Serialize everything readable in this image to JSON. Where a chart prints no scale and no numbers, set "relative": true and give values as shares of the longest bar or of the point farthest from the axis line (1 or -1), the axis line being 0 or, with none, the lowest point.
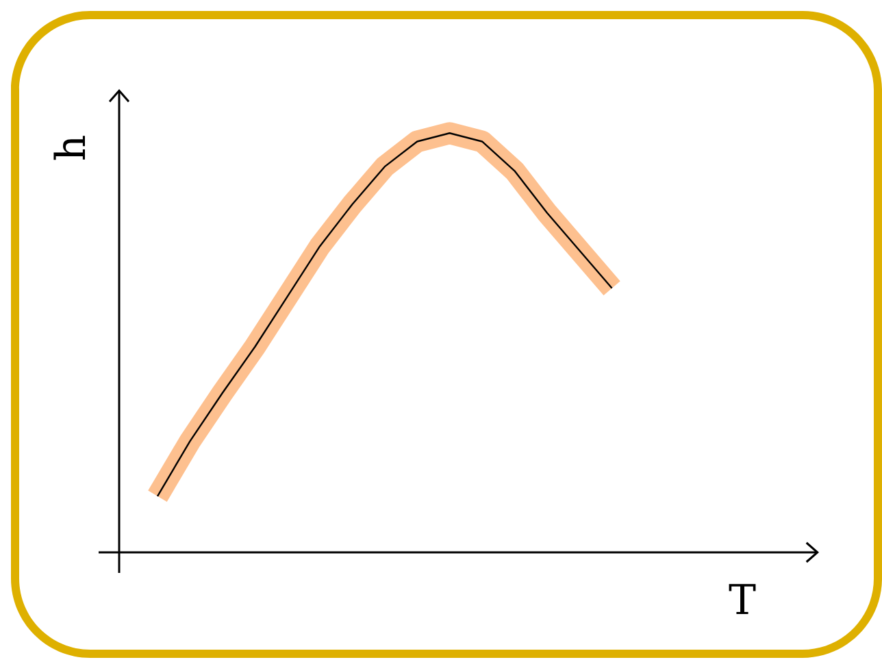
{
  "chart_data": {
    "type": "line",
    "relative": true,
    "xlabel": "T",
    "ylabel": "h",
    "categories": [
      null,
      null,
      null,
      null,
      null,
      null,
      null,
      null,
      null,
      null,
      null,
      null,
      null,
      null,
      null
    ],
    "series": [
      {
        "color": "#fdc08f",
        "values": [
          0.134,
          0.265,
          0.38,
          0.49,
          0.61,
          0.73,
          0.83,
          0.92,
          0.98,
          1.0,
          0.98,
          0.91,
          0.81,
          0.72,
          0.63
        ]
      },
      {
        "color": "#000000",
        "values": [
          0.134,
          0.265,
          0.38,
          0.49,
          0.61,
          0.73,
          0.83,
          0.92,
          0.98,
          1.0,
          0.98,
          0.91,
          0.81,
          0.72,
          0.63
        ]
      }
    ],
    "marker": "none",
    "line_style": "solid"
  }
}
